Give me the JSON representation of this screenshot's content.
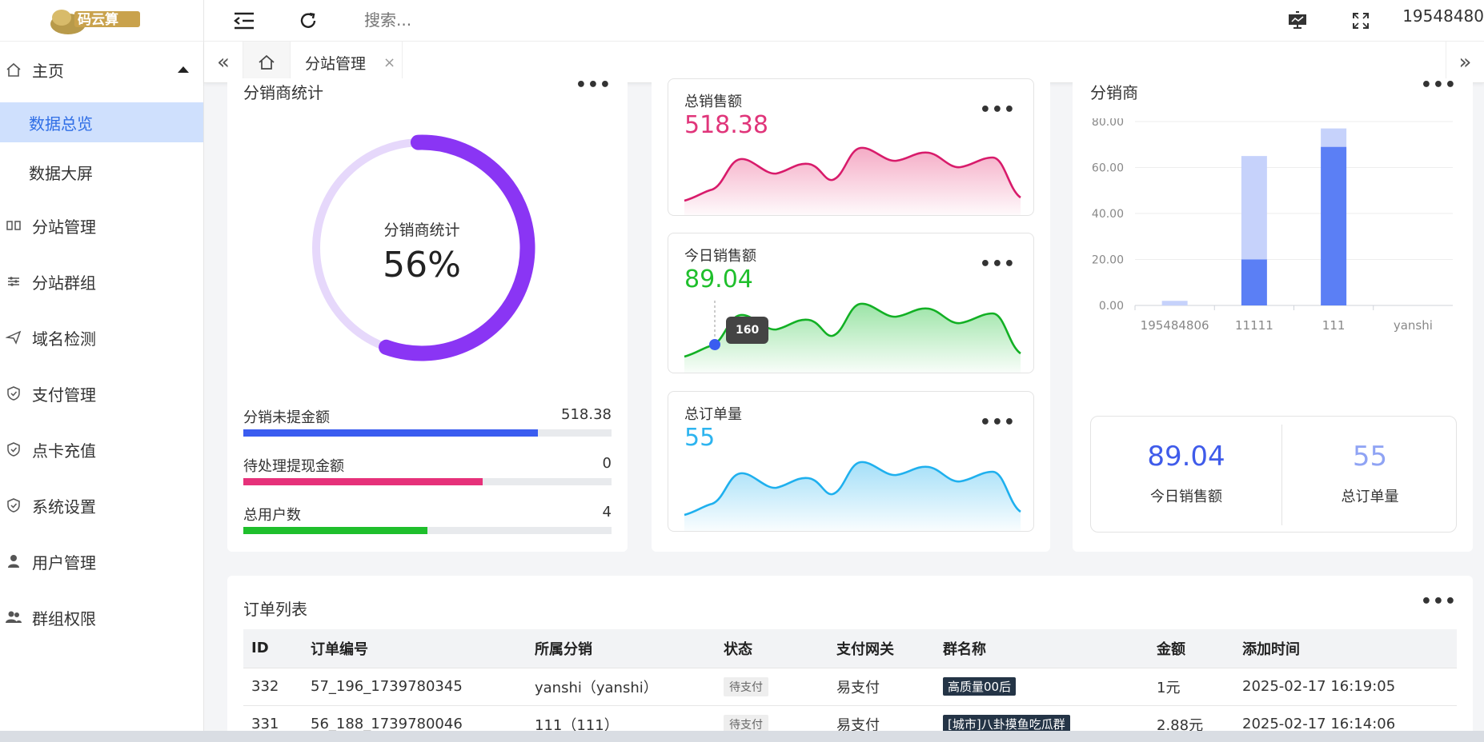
{
  "sidebar": {
    "logo_text": "码云算",
    "items": [
      {
        "label": "主页",
        "icon": "home-icon",
        "expanded": true
      },
      {
        "label": "数据总览",
        "active": true
      },
      {
        "label": "数据大屏"
      },
      {
        "label": "分站管理",
        "icon": "columns-icon"
      },
      {
        "label": "分站群组",
        "icon": "sliders-icon"
      },
      {
        "label": "域名检测",
        "icon": "paper-plane-icon"
      },
      {
        "label": "支付管理",
        "icon": "shield-check-icon"
      },
      {
        "label": "点卡充值",
        "icon": "shield-check-icon"
      },
      {
        "label": "系统设置",
        "icon": "shield-check-icon"
      },
      {
        "label": "用户管理",
        "icon": "user-icon"
      },
      {
        "label": "群组权限",
        "icon": "users-icon"
      }
    ]
  },
  "topbar": {
    "search_placeholder": "搜索...",
    "user_id": "19548480"
  },
  "tabs": {
    "active_label": "分站管理"
  },
  "distributor_stats": {
    "title": "分销商统计",
    "donut_label": "分销商统计",
    "percent_text": "56%",
    "percent": 0.56,
    "bars": [
      {
        "label": "分销未提金额",
        "value": "518.38",
        "fill": 0.8,
        "color": "#3a5cf0"
      },
      {
        "label": "待处理提现金额",
        "value": "0",
        "fill": 0.65,
        "color": "#e6317a"
      },
      {
        "label": "总用户数",
        "value": "4",
        "fill": 0.5,
        "color": "#1fbf2c"
      }
    ]
  },
  "mini_cards": [
    {
      "title": "总销售额",
      "value": "518.38",
      "color": "#e0357a"
    },
    {
      "title": "今日销售额",
      "value": "89.04",
      "color": "#1fbf2c",
      "tooltip": "160"
    },
    {
      "title": "总订单量",
      "value": "55",
      "color": "#2db4ef"
    }
  ],
  "distributor_chart": {
    "title": "分销商",
    "chart_data": {
      "type": "bar",
      "categories": [
        "195484806",
        "11111",
        "111",
        "yanshi"
      ],
      "series": [
        {
          "values": [
            0,
            20,
            69,
            0
          ],
          "color": "#5b7ff5"
        },
        {
          "values": [
            2,
            45,
            8,
            0
          ],
          "color": "#c6d2fb"
        }
      ],
      "ylim": [
        0,
        80
      ],
      "yticks": [
        "0.00",
        "20.00",
        "40.00",
        "60.00",
        "80.00"
      ]
    }
  },
  "summary": {
    "today_sales_value": "89.04",
    "today_sales_label": "今日销售额",
    "total_orders_value": "55",
    "total_orders_label": "总订单量"
  },
  "orders": {
    "title": "订单列表",
    "columns": [
      "ID",
      "订单编号",
      "所属分销",
      "状态",
      "支付网关",
      "群名称",
      "金额",
      "添加时间"
    ],
    "rows": [
      {
        "id": "332",
        "order_no": "57_196_1739780345",
        "distributor": "yanshi（yanshi）",
        "status": "待支付",
        "gateway": "易支付",
        "group": "高质量00后",
        "amount": "1元",
        "time": "2025-02-17 16:19:05"
      },
      {
        "id": "331",
        "order_no": "56_188_1739780046",
        "distributor": "111（111）",
        "status": "待支付",
        "gateway": "易支付",
        "group": "[城市]八卦摸鱼吃瓜群",
        "amount": "2.88元",
        "time": "2025-02-17 16:14:06"
      }
    ]
  }
}
